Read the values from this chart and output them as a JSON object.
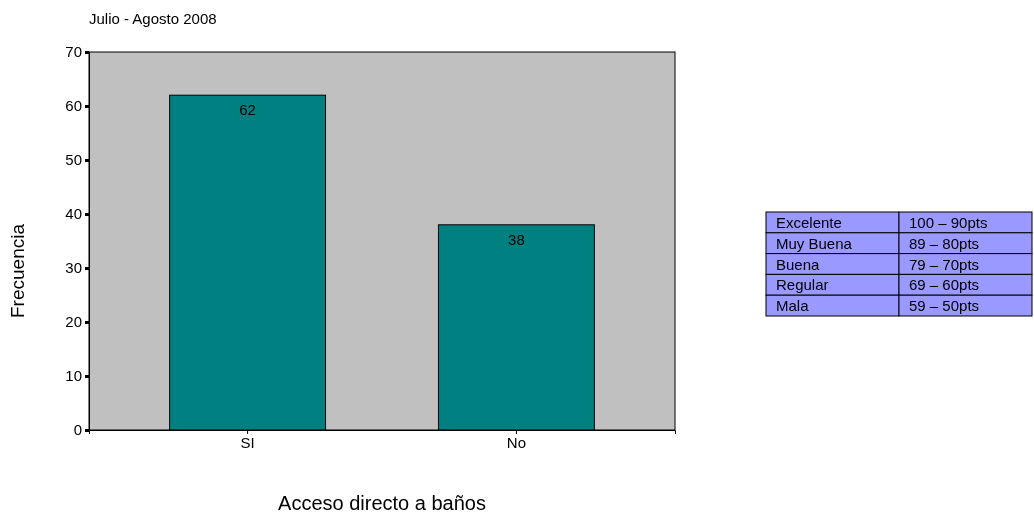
{
  "chart_data": [
    {
      "type": "bar",
      "title": "Julio - Agosto 2008",
      "xlabel": "Acceso directo a baños",
      "ylabel": "Frecuencia",
      "categories": [
        "SI",
        "No"
      ],
      "values": [
        62,
        38
      ],
      "color": "#008080",
      "ylim": [
        0,
        70
      ],
      "yticks": [
        0,
        10,
        20,
        30,
        40,
        50,
        60,
        70
      ],
      "data_labels": true
    },
    {
      "type": "other",
      "annotations": [
        "Excelente",
        "100 – 90pts",
        "Muy Buena",
        "89 – 80pts",
        "Buena",
        "79 – 70pts",
        "Regular",
        "69 – 60pts",
        "Mala",
        "59 – 50pts"
      ]
    }
  ]
}
